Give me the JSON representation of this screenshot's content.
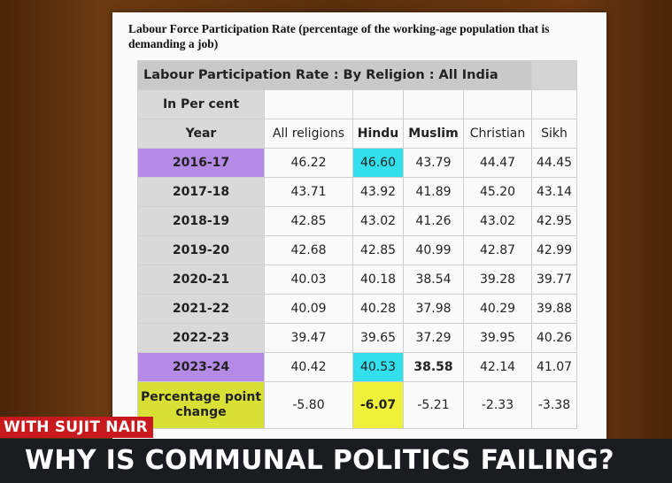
{
  "heading": "Labour Force Participation Rate (percentage of the working-age population that is demanding a job)",
  "table": {
    "title": "Labour Participation Rate : By Religion : All India",
    "unit_label": "In Per cent",
    "year_header": "Year",
    "columns": [
      "All religions",
      "Hindu",
      "Muslim",
      "Christian",
      "Sikh"
    ],
    "rows": [
      {
        "year": "2016-17",
        "values": [
          "46.22",
          "46.60",
          "43.79",
          "44.47",
          "44.45"
        ]
      },
      {
        "year": "2017-18",
        "values": [
          "43.71",
          "43.92",
          "41.89",
          "45.20",
          "43.14"
        ]
      },
      {
        "year": "2018-19",
        "values": [
          "42.85",
          "43.02",
          "41.26",
          "43.02",
          "42.95"
        ]
      },
      {
        "year": "2019-20",
        "values": [
          "42.68",
          "42.85",
          "40.99",
          "42.87",
          "42.99"
        ]
      },
      {
        "year": "2020-21",
        "values": [
          "40.03",
          "40.18",
          "38.54",
          "39.28",
          "39.77"
        ]
      },
      {
        "year": "2021-22",
        "values": [
          "40.09",
          "40.28",
          "37.98",
          "40.29",
          "39.88"
        ]
      },
      {
        "year": "2022-23",
        "values": [
          "39.47",
          "39.65",
          "37.29",
          "39.95",
          "40.26"
        ]
      },
      {
        "year": "2023-24",
        "values": [
          "40.42",
          "40.53",
          "38.58",
          "42.14",
          "41.07"
        ]
      }
    ],
    "change": {
      "label_line1": "Percentage point",
      "label_line2": "change",
      "values": [
        "-5.80",
        "-6.07",
        "-5.21",
        "-2.33",
        "-3.38"
      ]
    }
  },
  "badge": "WITH SUJIT NAIR",
  "banner": "WHY IS COMMUNAL POLITICS FAILING?",
  "colors": {
    "background": "#5a2f0c",
    "highlight_purple": "#b58ae6",
    "highlight_cyan": "#33e1ee",
    "highlight_yellow": "#d9e035",
    "accent_red": "#d6262a",
    "badge_red": "#c8191e",
    "banner_dark": "#1a1c20"
  }
}
